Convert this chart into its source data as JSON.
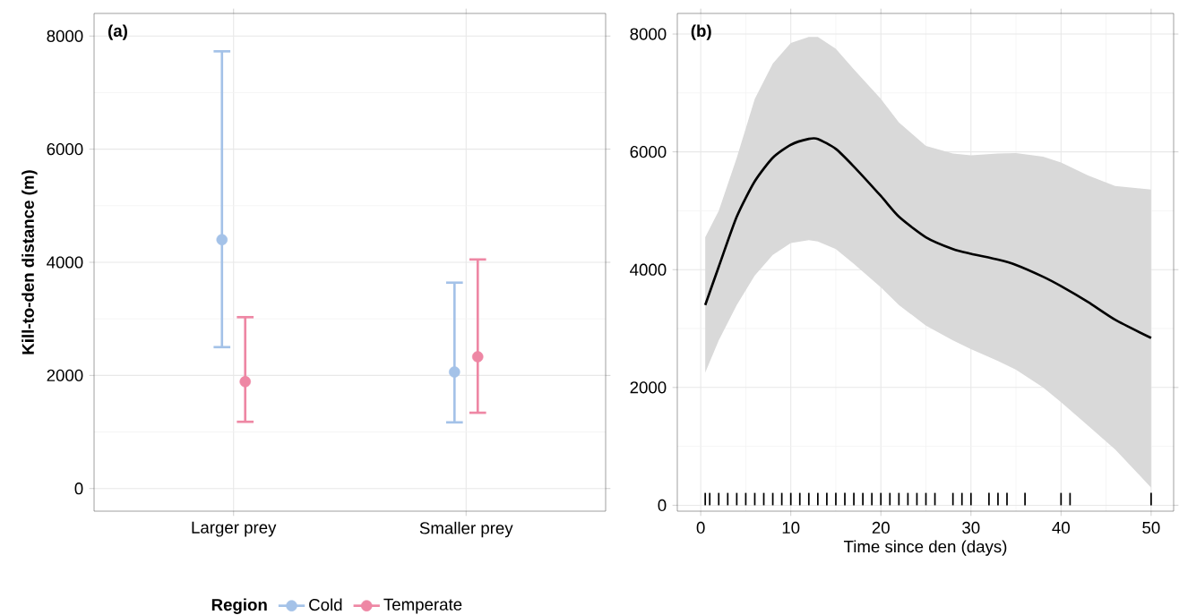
{
  "chart_data": [
    {
      "type": "scatter",
      "title": "(a)",
      "ylabel": "Kill-to-den distance (m)",
      "legend_title": "Region",
      "categories": [
        "Larger prey",
        "Smaller prey"
      ],
      "series": [
        {
          "name": "Cold",
          "color": "#a4c2e8",
          "values": [
            4400,
            2060
          ],
          "errors": [
            [
              2500,
              7730
            ],
            [
              1170,
              3640
            ]
          ]
        },
        {
          "name": "Temperate",
          "color": "#ee87a4",
          "values": [
            1890,
            2330
          ],
          "errors": [
            [
              1180,
              3030
            ],
            [
              1340,
              4050
            ]
          ]
        }
      ],
      "ylim": [
        -400,
        8400
      ],
      "yticks": [
        0,
        2000,
        4000,
        6000,
        8000
      ],
      "grid": true,
      "legend": "bottom",
      "marker": "circle"
    },
    {
      "type": "line",
      "title": "(b)",
      "xlabel": "Time since den (days)",
      "x": [
        0.5,
        2,
        4,
        6,
        8,
        10,
        12,
        13,
        15,
        17,
        20,
        22,
        25,
        28,
        30,
        33,
        35,
        38,
        40,
        43,
        46,
        50
      ],
      "series": [
        {
          "color": "#000000",
          "values": [
            3400,
            4050,
            4900,
            5500,
            5900,
            6120,
            6220,
            6220,
            6050,
            5750,
            5250,
            4900,
            4550,
            4350,
            4270,
            4170,
            4080,
            3880,
            3720,
            3450,
            3150,
            2840
          ],
          "upper": [
            4550,
            5000,
            5900,
            6900,
            7500,
            7850,
            7950,
            7950,
            7750,
            7400,
            6900,
            6500,
            6100,
            5970,
            5940,
            5970,
            5980,
            5920,
            5820,
            5600,
            5420,
            5360
          ],
          "lower": [
            2250,
            2800,
            3400,
            3900,
            4250,
            4450,
            4500,
            4480,
            4350,
            4100,
            3700,
            3400,
            3050,
            2800,
            2650,
            2450,
            2300,
            2000,
            1750,
            1350,
            950,
            300
          ]
        },
        {
          "type": "bar",
          "color": "#000000",
          "x": [
            0.5,
            1,
            2,
            3,
            4,
            5,
            6,
            7,
            8,
            9,
            10,
            11,
            12,
            13,
            14,
            15,
            16,
            17,
            18,
            19,
            20,
            21,
            22,
            23,
            24,
            25,
            26,
            28,
            29,
            30,
            32,
            33,
            34,
            36,
            40,
            41,
            50
          ],
          "values": [
            210,
            210,
            210,
            210,
            210,
            210,
            210,
            210,
            210,
            210,
            210,
            210,
            210,
            210,
            210,
            210,
            210,
            210,
            210,
            210,
            210,
            210,
            210,
            210,
            210,
            210,
            210,
            210,
            210,
            210,
            210,
            210,
            210,
            210,
            210,
            210,
            210
          ]
        }
      ],
      "xlim": [
        -2.6,
        52.5
      ],
      "xticks": [
        0,
        10,
        20,
        30,
        40,
        50
      ],
      "ylim": [
        -100,
        8350
      ],
      "yticks": [
        0,
        2000,
        4000,
        6000,
        8000
      ],
      "grid": true
    }
  ]
}
